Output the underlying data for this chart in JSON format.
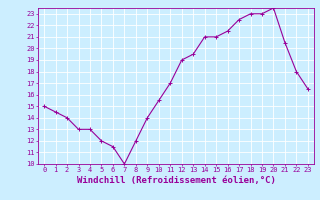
{
  "x": [
    0,
    1,
    2,
    3,
    4,
    5,
    6,
    7,
    8,
    9,
    10,
    11,
    12,
    13,
    14,
    15,
    16,
    17,
    18,
    19,
    20,
    21,
    22,
    23
  ],
  "y": [
    15,
    14.5,
    14,
    13,
    13,
    12,
    11.5,
    10,
    12,
    14,
    15.5,
    17,
    19,
    19.5,
    21,
    21,
    21.5,
    22.5,
    23,
    23,
    23.5,
    20.5,
    18,
    16.5
  ],
  "line_color": "#990099",
  "marker": "+",
  "marker_size": 3,
  "background_color": "#cceeff",
  "grid_color": "#aaddcc",
  "xlabel": "Windchill (Refroidissement éolien,°C)",
  "xlabel_color": "#990099",
  "xlim": [
    -0.5,
    23.5
  ],
  "ylim": [
    10,
    23.5
  ],
  "yticks": [
    10,
    11,
    12,
    13,
    14,
    15,
    16,
    17,
    18,
    19,
    20,
    21,
    22,
    23
  ],
  "xticks": [
    0,
    1,
    2,
    3,
    4,
    5,
    6,
    7,
    8,
    9,
    10,
    11,
    12,
    13,
    14,
    15,
    16,
    17,
    18,
    19,
    20,
    21,
    22,
    23
  ],
  "tick_color": "#990099",
  "tick_fontsize": 5,
  "xlabel_fontsize": 6.5,
  "line_width": 0.8
}
